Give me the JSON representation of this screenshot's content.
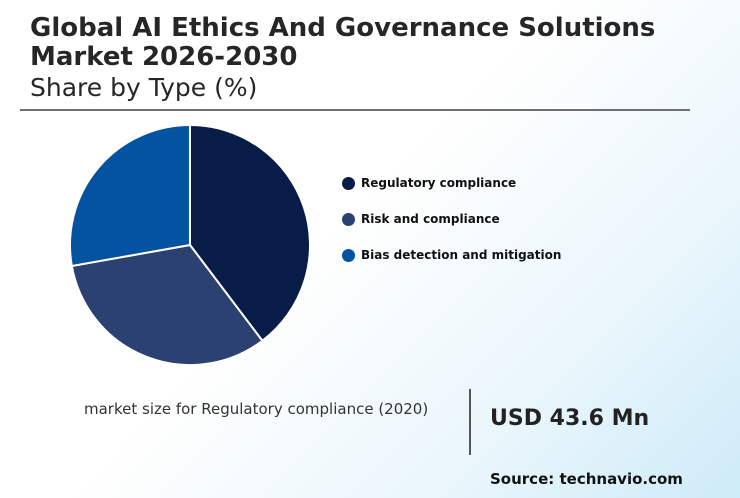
{
  "header": {
    "title": "Global AI Ethics And Governance Solutions Market 2026-2030",
    "subtitle": "Share by Type (%)"
  },
  "chart_data": {
    "type": "pie",
    "categories": [
      "Regulatory compliance",
      "Risk and compliance",
      "Bias detection and mitigation"
    ],
    "values": [
      39.7,
      32.5,
      27.8
    ],
    "colors": [
      "#071c46",
      "#2a4171",
      "#0453a0"
    ],
    "legend_placement": "right"
  },
  "market_size": {
    "label": "market size for Regulatory compliance (2020)",
    "value": "USD 43.6 Mn"
  },
  "source": "Source: technavio.com"
}
